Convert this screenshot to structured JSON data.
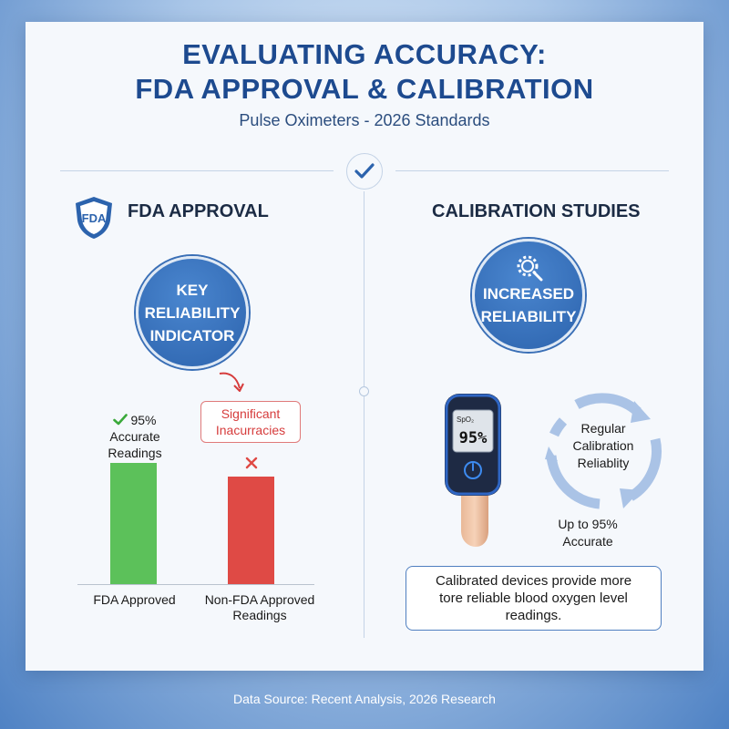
{
  "header": {
    "title_line1": "EVALUATING ACCURACY:",
    "title_line2": "FDA APPROVAL & CALIBRATION",
    "subtitle": "Pulse Oximeters - 2026 Standards"
  },
  "fda": {
    "heading": "FDA APPROVAL",
    "badge_text": "FDA",
    "circle_lines": [
      "KEY",
      "RELIABILITY",
      "INDICATOR"
    ],
    "callout_lines": [
      "Significant",
      "Inacurracies"
    ],
    "approved_label_pct": "95%",
    "approved_label_lines": [
      "Accurate",
      "Readings"
    ],
    "category_approved": "FDA Approved",
    "category_non_lines": [
      "Non-FDA Approved",
      "Readings"
    ]
  },
  "chart_data": {
    "type": "bar",
    "categories": [
      "FDA Approved",
      "Non-FDA Approved Readings"
    ],
    "values": [
      95,
      84
    ],
    "colors": [
      "#5cc15a",
      "#df4a45"
    ],
    "ylim": [
      0,
      100
    ]
  },
  "calibration": {
    "heading": "CALIBRATION STUDIES",
    "circle_lines": [
      "INCREASED",
      "RELIABILITY"
    ],
    "device_reading": "95%",
    "device_spo2_label": "SpO₂",
    "cycle_lines": [
      "Regular",
      "Calibration",
      "Reliablity"
    ],
    "accuracy_lines": [
      "Up to 95%",
      "Accurate"
    ],
    "summary_lines": [
      "Calibrated devices provide more",
      "tore reliable blood oxygen level",
      "readings."
    ]
  },
  "footer": {
    "source": "Data Source: Recent Analysis, 2026 Research"
  },
  "colors": {
    "primary": "#1d4a8f",
    "accent_blue": "#2c63ad",
    "green": "#5cc15a",
    "red": "#df4a45"
  }
}
